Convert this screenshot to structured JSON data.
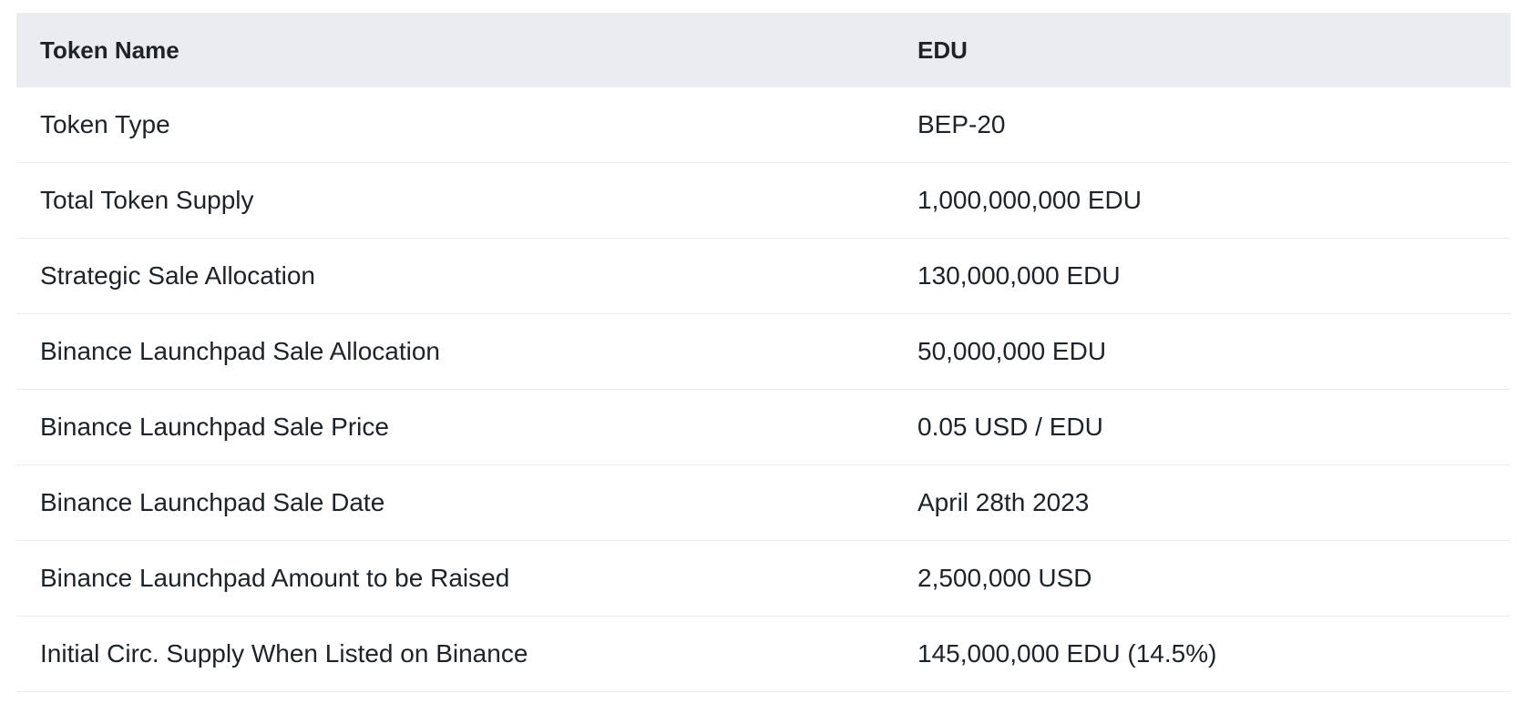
{
  "table": {
    "header": {
      "label": "Token Name",
      "value": "EDU"
    },
    "rows": [
      {
        "label": "Token Type",
        "value": "BEP-20"
      },
      {
        "label": "Total Token Supply",
        "value": "1,000,000,000 EDU"
      },
      {
        "label": "Strategic Sale Allocation",
        "value": "130,000,000 EDU"
      },
      {
        "label": "Binance Launchpad Sale Allocation",
        "value": "50,000,000 EDU"
      },
      {
        "label": "Binance Launchpad Sale Price",
        "value": "0.05 USD / EDU"
      },
      {
        "label": "Binance Launchpad Sale Date",
        "value": "April 28th 2023"
      },
      {
        "label": "Binance Launchpad Amount to be Raised",
        "value": "2,500,000 USD"
      },
      {
        "label": "Initial Circ. Supply When Listed on Binance",
        "value": "145,000,000 EDU (14.5%)"
      }
    ]
  }
}
